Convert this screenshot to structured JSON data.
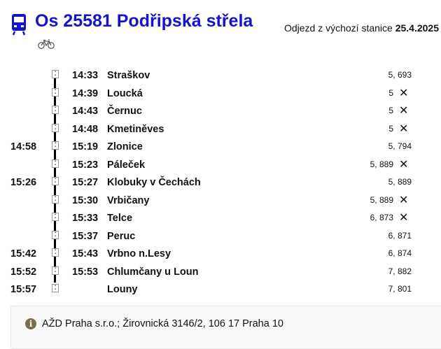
{
  "header": {
    "title": "Os 25581 Podřipská střela",
    "departure_label": "Odjezd z výchozí stanice",
    "departure_date": "25.4.2025",
    "train_icon": "train-icon",
    "bike_icon": "bicycle-icon",
    "accent_color": "#1414c8"
  },
  "stops": [
    {
      "arr": "",
      "dep": "14:33",
      "name": "Straškov",
      "km": "5, 693",
      "request": false
    },
    {
      "arr": "",
      "dep": "14:39",
      "name": "Loucká",
      "km": "5",
      "request": true
    },
    {
      "arr": "",
      "dep": "14:43",
      "name": "Černuc",
      "km": "5",
      "request": true
    },
    {
      "arr": "",
      "dep": "14:48",
      "name": "Kmetiněves",
      "km": "5",
      "request": true
    },
    {
      "arr": "14:58",
      "dep": "15:19",
      "name": "Zlonice",
      "km": "5, 794",
      "request": false
    },
    {
      "arr": "",
      "dep": "15:23",
      "name": "Páleček",
      "km": "5, 889",
      "request": true
    },
    {
      "arr": "15:26",
      "dep": "15:27",
      "name": "Klobuky v Čechách",
      "km": "5, 889",
      "request": false
    },
    {
      "arr": "",
      "dep": "15:30",
      "name": "Vrbičany",
      "km": "5, 889",
      "request": true
    },
    {
      "arr": "",
      "dep": "15:33",
      "name": "Telce",
      "km": "6, 873",
      "request": true
    },
    {
      "arr": "",
      "dep": "15:37",
      "name": "Peruc",
      "km": "6, 871",
      "request": false
    },
    {
      "arr": "15:42",
      "dep": "15:43",
      "name": "Vrbno n.Lesy",
      "km": "6, 874",
      "request": false
    },
    {
      "arr": "15:52",
      "dep": "15:53",
      "name": "Chlumčany u Loun",
      "km": "7, 882",
      "request": false
    },
    {
      "arr": "15:57",
      "dep": "",
      "name": "Louny",
      "km": "7, 801",
      "request": false
    }
  ],
  "request_symbol": "✕",
  "footer": {
    "icon": "info-icon",
    "text": "AŽD Praha s.r.o.; Žirovnická 3146/2, 106 17 Praha 10"
  }
}
